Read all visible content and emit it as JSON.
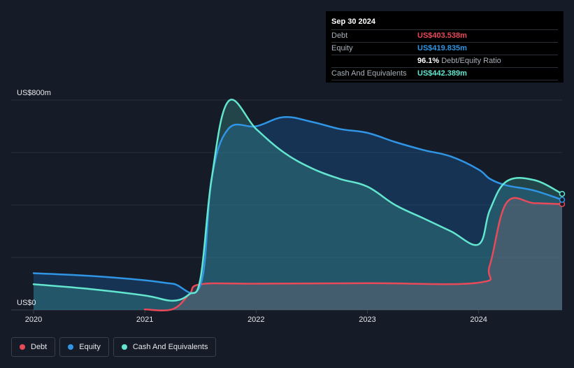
{
  "tooltip": {
    "date": "Sep 30 2024",
    "rows": [
      {
        "label": "Debt",
        "value": "US$403.538m"
      },
      {
        "label": "Equity",
        "value": "US$419.835m"
      },
      {
        "label": "",
        "value": "96.1%",
        "note": "Debt/Equity Ratio"
      },
      {
        "label": "Cash And Equivalents",
        "value": "US$442.389m"
      }
    ]
  },
  "legend": [
    {
      "label": "Debt",
      "color": "#e84a5a"
    },
    {
      "label": "Equity",
      "color": "#2f95e4"
    },
    {
      "label": "Cash And Equivalents",
      "color": "#63e6cf"
    }
  ],
  "chart_data": {
    "type": "area",
    "y_unit": "US$ millions",
    "ylim": [
      0,
      800
    ],
    "y_tick_labels": [
      {
        "value": 800,
        "label": "US$800m"
      },
      {
        "value": 0,
        "label": "US$0"
      }
    ],
    "xlim": [
      2020.0,
      2024.75
    ],
    "x_tick_labels": [
      "2020",
      "2021",
      "2022",
      "2023",
      "2024"
    ],
    "grid": true,
    "legend_position": "bottom-left",
    "series": [
      {
        "name": "Debt",
        "color": "#e84a5a",
        "points": [
          [
            2021.0,
            2
          ],
          [
            2021.25,
            3
          ],
          [
            2021.4,
            60
          ],
          [
            2021.5,
            98
          ],
          [
            2022.0,
            100
          ],
          [
            2023.0,
            102
          ],
          [
            2024.0,
            104
          ],
          [
            2024.1,
            170
          ],
          [
            2024.25,
            408
          ],
          [
            2024.5,
            407
          ],
          [
            2024.75,
            403.5
          ]
        ]
      },
      {
        "name": "Equity",
        "color": "#2f95e4",
        "points": [
          [
            2020.0,
            140
          ],
          [
            2020.5,
            130
          ],
          [
            2021.0,
            113
          ],
          [
            2021.25,
            100
          ],
          [
            2021.5,
            95
          ],
          [
            2021.6,
            500
          ],
          [
            2021.75,
            690
          ],
          [
            2022.0,
            700
          ],
          [
            2022.25,
            735
          ],
          [
            2022.5,
            717
          ],
          [
            2022.75,
            690
          ],
          [
            2023.0,
            675
          ],
          [
            2023.25,
            640
          ],
          [
            2023.5,
            610
          ],
          [
            2023.75,
            585
          ],
          [
            2024.0,
            535
          ],
          [
            2024.1,
            500
          ],
          [
            2024.25,
            475
          ],
          [
            2024.5,
            455
          ],
          [
            2024.75,
            419.8
          ]
        ]
      },
      {
        "name": "Cash And Equivalents",
        "color": "#63e6cf",
        "points": [
          [
            2020.0,
            98
          ],
          [
            2020.5,
            80
          ],
          [
            2021.0,
            55
          ],
          [
            2021.25,
            35
          ],
          [
            2021.4,
            60
          ],
          [
            2021.5,
            120
          ],
          [
            2021.6,
            500
          ],
          [
            2021.75,
            795
          ],
          [
            2022.0,
            690
          ],
          [
            2022.25,
            600
          ],
          [
            2022.5,
            540
          ],
          [
            2022.75,
            500
          ],
          [
            2023.0,
            470
          ],
          [
            2023.25,
            400
          ],
          [
            2023.5,
            350
          ],
          [
            2023.75,
            300
          ],
          [
            2024.0,
            250
          ],
          [
            2024.1,
            380
          ],
          [
            2024.25,
            490
          ],
          [
            2024.5,
            495
          ],
          [
            2024.75,
            442.4
          ]
        ]
      }
    ]
  }
}
